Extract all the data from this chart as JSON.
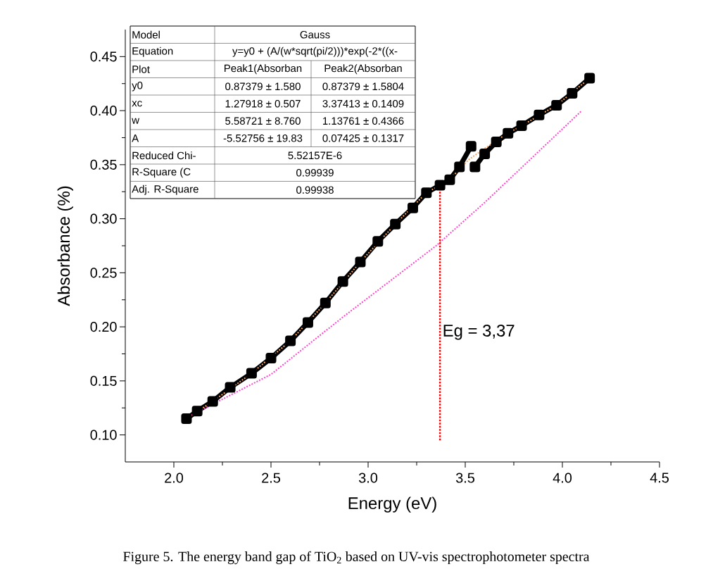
{
  "chart_data": {
    "type": "line",
    "xlabel": "Energy (eV)",
    "ylabel": "Absorbance (%)",
    "xlim": [
      1.75,
      4.5
    ],
    "ylim": [
      0.075,
      0.475
    ],
    "xticks": [
      {
        "value": 2,
        "label": "2.0"
      },
      {
        "value": 2.25,
        "label": null
      },
      {
        "value": 2.5,
        "label": "2.5"
      },
      {
        "value": 2.75,
        "label": null
      },
      {
        "value": 3,
        "label": "3.0"
      },
      {
        "value": 3.25,
        "label": null
      },
      {
        "value": 3.5,
        "label": "3.5"
      },
      {
        "value": 3.75,
        "label": null
      },
      {
        "value": 4,
        "label": "4.0"
      },
      {
        "value": 4.25,
        "label": null
      },
      {
        "value": 4.5,
        "label": "4.5"
      }
    ],
    "yticks": [
      {
        "value": 0.1,
        "label": "0.10"
      },
      {
        "value": 0.125,
        "label": null
      },
      {
        "value": 0.15,
        "label": "0.15"
      },
      {
        "value": 0.175,
        "label": null
      },
      {
        "value": 0.2,
        "label": "0.20"
      },
      {
        "value": 0.225,
        "label": null
      },
      {
        "value": 0.25,
        "label": "0.25"
      },
      {
        "value": 0.275,
        "label": null
      },
      {
        "value": 0.3,
        "label": "0.30"
      },
      {
        "value": 0.325,
        "label": null
      },
      {
        "value": 0.35,
        "label": "0.35"
      },
      {
        "value": 0.375,
        "label": null
      },
      {
        "value": 0.4,
        "label": "0.40"
      },
      {
        "value": 0.425,
        "label": null
      },
      {
        "value": 0.45,
        "label": "0.45"
      }
    ],
    "series": [
      {
        "type": "line",
        "marker": "square",
        "color": "#000000",
        "x": [
          2.065,
          2.12,
          2.2,
          2.29,
          2.4,
          2.5,
          2.6,
          2.69,
          2.78,
          2.87,
          2.96,
          3.05,
          3.14,
          3.23,
          3.3,
          3.37,
          3.42,
          3.47,
          3.53,
          3.54,
          3.55,
          3.6,
          3.66,
          3.72,
          3.79,
          3.88,
          3.97,
          4.05,
          4.14
        ],
        "values": [
          0.115,
          0.122,
          0.131,
          0.144,
          0.157,
          0.171,
          0.187,
          0.204,
          0.222,
          0.242,
          0.26,
          0.279,
          0.295,
          0.31,
          0.324,
          0.331,
          0.336,
          0.348,
          0.367,
          null,
          0.348,
          0.36,
          0.371,
          0.379,
          0.386,
          0.396,
          0.405,
          0.416,
          0.43
        ]
      },
      {
        "type": "line",
        "marker": "none",
        "line_style": "dotted",
        "color": "#f4a460",
        "x": [
          2.065,
          2.2,
          2.4,
          2.6,
          2.78,
          2.96,
          3.14,
          3.3,
          3.37,
          3.45,
          3.52,
          3.6,
          3.7,
          3.8,
          3.97,
          4.14
        ],
        "values": [
          0.115,
          0.131,
          0.157,
          0.187,
          0.222,
          0.26,
          0.295,
          0.324,
          0.331,
          0.342,
          0.355,
          0.365,
          0.377,
          0.387,
          0.405,
          0.43
        ]
      },
      {
        "type": "line",
        "marker": "none",
        "line_style": "dotted",
        "color": "#ff44cc",
        "x": [
          2.065,
          2.5,
          2.87,
          3.35,
          3.6,
          4.1
        ],
        "values": [
          0.116,
          0.156,
          0.209,
          0.275,
          0.315,
          0.4
        ]
      }
    ],
    "ref_lines": [
      {
        "axis": "x",
        "value": 3.37,
        "label": "Eg = 3,37",
        "color": "#ff0000",
        "line_style": "dotted"
      }
    ],
    "annotations": [
      "Model",
      "Gauss",
      "Equation",
      "y=y0 + (A/(w*sqrt(pi/2)))*exp(-2*((x-",
      "Plot",
      "Peak1(Absorban",
      "Peak2(Absorban",
      "y0",
      "0.87379 ± 1.580",
      "0.87379 ± 1.5804",
      "xc",
      "1.27918 ± 0.507",
      "3.37413 ± 0.1409",
      "w",
      "5.58721 ± 8.760",
      "1.13761 ± 0.4366",
      "A",
      "-5.52756 ± 19.83",
      "0.07425 ± 0.1317",
      "Reduced Chi-",
      "5.52157E-6",
      "R-Square (C",
      "0.99939",
      "Adj. R-Square",
      "0.99938",
      "Figure 5. The energy band gap of TiO$_{2}$ based on UV-vis spectrophotometer spectra"
    ]
  }
}
